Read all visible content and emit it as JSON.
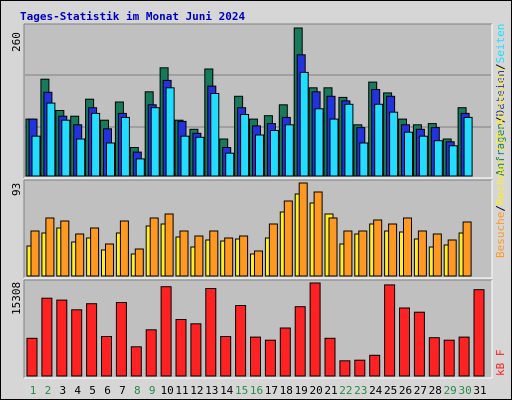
{
  "title": "Tages-Statistik im Monat Juni 2024",
  "colors": {
    "background": "#d6d6d6",
    "panel": "#c0c0c0",
    "title": "#0000c0",
    "gridline": "#808080",
    "anfragen": "#177a5a",
    "dateien": "#2233dd",
    "seiten": "#22ddff",
    "rechner": "#ffee22",
    "besuche": "#ff9922",
    "kb": "#ff2222",
    "weekday": "#000000",
    "weekend": "#2a8a4a"
  },
  "legends": {
    "top": [
      {
        "text": "Anfragen",
        "color": "#177a5a"
      },
      {
        "text": "/",
        "color": "#000000"
      },
      {
        "text": "Dateien",
        "color": "#2233dd"
      },
      {
        "text": "/",
        "color": "#000000"
      },
      {
        "text": "Seiten",
        "color": "#22ddff"
      }
    ],
    "middle": [
      {
        "text": "Besuche",
        "color": "#ff9922"
      },
      {
        "text": "/",
        "color": "#000000"
      },
      {
        "text": "Rechner (IP-Adressen)",
        "color": "#ffee22"
      }
    ],
    "bottom": [
      {
        "text": "kB F",
        "color": "#ff2222"
      }
    ]
  },
  "chart_data": {
    "type": "bar",
    "title": "Tages-Statistik im Monat Juni 2024",
    "categories": [
      "1",
      "2",
      "3",
      "4",
      "5",
      "6",
      "7",
      "8",
      "9",
      "10",
      "11",
      "12",
      "13",
      "14",
      "15",
      "16",
      "17",
      "18",
      "19",
      "20",
      "21",
      "22",
      "23",
      "24",
      "25",
      "26",
      "27",
      "28",
      "29",
      "30",
      "31"
    ],
    "weekend_days": [
      "1",
      "2",
      "8",
      "9",
      "15",
      "16",
      "22",
      "23",
      "29",
      "30"
    ],
    "panels": [
      {
        "id": "top",
        "ymax_label": "260",
        "ylim": [
          0,
          260
        ],
        "series": [
          {
            "name": "Anfragen",
            "color": "#177a5a",
            "values": [
              100,
              170,
              115,
              105,
              135,
              98,
              130,
              50,
              148,
              190,
              98,
              82,
              188,
              65,
              140,
              100,
              106,
              125,
              260,
              155,
              155,
              138,
              90,
              165,
              146,
              100,
              90,
              92,
              65,
              120,
              0
            ]
          },
          {
            "name": "Dateien",
            "color": "#2233dd",
            "values": [
              100,
              147,
              105,
              90,
              120,
              83,
              110,
              42,
              125,
              168,
              96,
              75,
              158,
              50,
              120,
              88,
              92,
              103,
              213,
              148,
              140,
              132,
              85,
              152,
              140,
              90,
              82,
              85,
              60,
              110,
              0
            ]
          },
          {
            "name": "Seiten",
            "color": "#22ddff",
            "values": [
              70,
              128,
              98,
              65,
              110,
              58,
              103,
              30,
              120,
              155,
              70,
              68,
              145,
              40,
              108,
              72,
              80,
              90,
              182,
              118,
              100,
              126,
              58,
              126,
              112,
              77,
              70,
              62,
              53,
              103,
              0
            ]
          }
        ]
      },
      {
        "id": "middle",
        "ymax_label": "93",
        "ylim": [
          0,
          93
        ],
        "series": [
          {
            "name": "Besuche",
            "color": "#ff9922",
            "values": [
              45,
              58,
              55,
              42,
              48,
              32,
              55,
              27,
              58,
              62,
              45,
              40,
              45,
              38,
              40,
              25,
              52,
              75,
              93,
              84,
              58,
              45,
              45,
              56,
              52,
              58,
              45,
              42,
              36,
              54,
              0
            ]
          },
          {
            "name": "Rechner (IP-Adressen)",
            "color": "#ffee22",
            "values": [
              30,
              43,
              48,
              34,
              38,
              26,
              43,
              22,
              50,
              52,
              39,
              29,
              36,
              35,
              37,
              22,
              38,
              64,
              82,
              73,
              62,
              32,
              42,
              52,
              45,
              44,
              37,
              29,
              31,
              43,
              0
            ]
          }
        ]
      },
      {
        "id": "bottom",
        "ymax_label": "15308",
        "ylim": [
          0,
          15308
        ],
        "series": [
          {
            "name": "kB F",
            "color": "#ff2222",
            "values": [
              6200,
              12800,
              12500,
              10900,
              11900,
              6500,
              12100,
              4800,
              7600,
              14700,
              9300,
              8600,
              14400,
              6500,
              11600,
              6400,
              5900,
              7900,
              11400,
              15300,
              6200,
              2500,
              2600,
              3400,
              15000,
              11200,
              10500,
              6300,
              5900,
              6400,
              14200
            ]
          }
        ]
      }
    ]
  }
}
